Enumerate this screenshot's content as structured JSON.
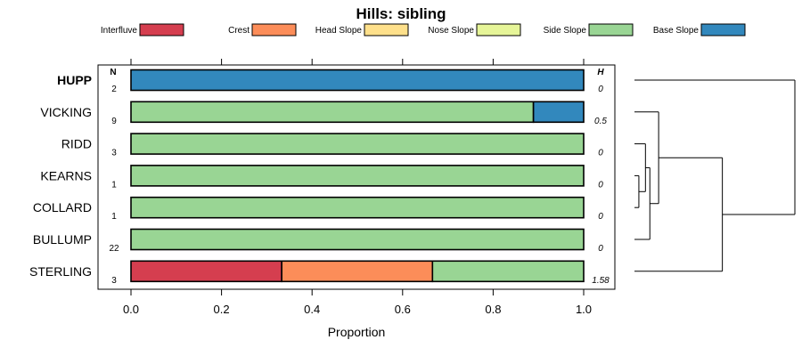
{
  "chart_data": {
    "type": "stacked-bar-horizontal",
    "title": "Hills: sibling",
    "xlabel": "Proportion",
    "xlim": [
      0,
      1
    ],
    "xticks": [
      "0.0",
      "0.2",
      "0.4",
      "0.6",
      "0.8",
      "1.0"
    ],
    "n_header": "N",
    "h_header": "H",
    "legend": [
      {
        "label": "Interfluve",
        "color": "#D53E4F"
      },
      {
        "label": "Crest",
        "color": "#FC8D59"
      },
      {
        "label": "Head Slope",
        "color": "#FEE08B"
      },
      {
        "label": "Nose Slope",
        "color": "#E6F598"
      },
      {
        "label": "Side Slope",
        "color": "#99D594"
      },
      {
        "label": "Base Slope",
        "color": "#3288BD"
      }
    ],
    "rows": [
      {
        "name": "HUPP",
        "bold": true,
        "n": "2",
        "h": "0",
        "values": [
          0,
          0,
          0,
          0,
          0,
          1
        ]
      },
      {
        "name": "VICKING",
        "bold": false,
        "n": "9",
        "h": "0.5",
        "values": [
          0,
          0,
          0,
          0,
          0.889,
          0.111
        ]
      },
      {
        "name": "RIDD",
        "bold": false,
        "n": "3",
        "h": "0",
        "values": [
          0,
          0,
          0,
          0,
          1,
          0
        ]
      },
      {
        "name": "KEARNS",
        "bold": false,
        "n": "1",
        "h": "0",
        "values": [
          0,
          0,
          0,
          0,
          1,
          0
        ]
      },
      {
        "name": "COLLARD",
        "bold": false,
        "n": "1",
        "h": "0",
        "values": [
          0,
          0,
          0,
          0,
          1,
          0
        ]
      },
      {
        "name": "BULLUMP",
        "bold": false,
        "n": "22",
        "h": "0",
        "values": [
          0,
          0,
          0,
          0,
          1,
          0
        ]
      },
      {
        "name": "STERLING",
        "bold": false,
        "n": "3",
        "h": "1.58",
        "values": [
          0.333,
          0.333,
          0,
          0,
          0.334,
          0
        ]
      }
    ],
    "dendrogram": {
      "leaves": [
        "HUPP",
        "VICKING",
        "RIDD",
        "KEARNS",
        "COLLARD",
        "BULLUMP",
        "STERLING"
      ],
      "merges": [
        {
          "a": "KEARNS",
          "b": "COLLARD",
          "height": 0.02
        },
        {
          "a": "RIDD",
          "b": 0,
          "height": 0.05
        },
        {
          "a": 1,
          "b": "BULLUMP",
          "height": 0.07
        },
        {
          "a": "VICKING",
          "b": 2,
          "height": 0.11
        },
        {
          "a": 3,
          "b": "STERLING",
          "height": 0.4
        },
        {
          "a": "HUPP",
          "b": 4,
          "height": 0.73
        }
      ]
    }
  }
}
